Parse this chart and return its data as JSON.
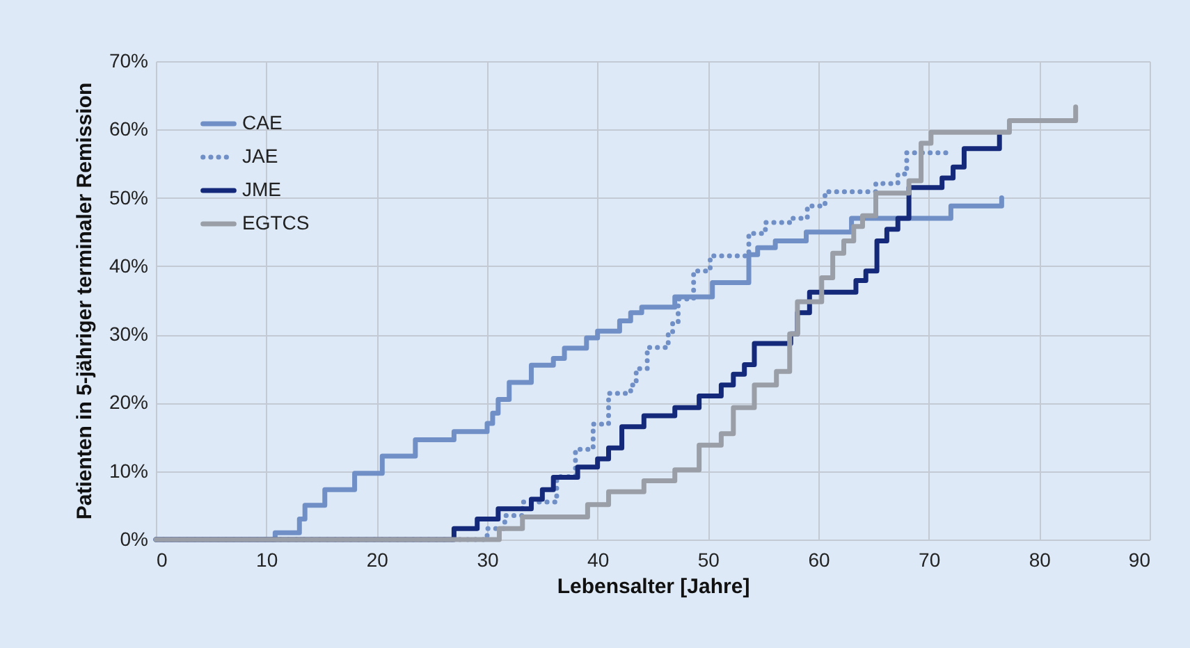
{
  "chart_data": {
    "type": "step",
    "xlabel": "Lebensalter [Jahre]",
    "ylabel": "Patienten in 5-jähriger terminaler Remission",
    "xlim": [
      0,
      90
    ],
    "xticks": [
      0,
      10,
      20,
      30,
      40,
      50,
      60,
      70,
      80,
      90
    ],
    "ylim": [
      0,
      70
    ],
    "yticks": [
      {
        "value": 0,
        "label": "0%"
      },
      {
        "value": 10,
        "label": "10%"
      },
      {
        "value": 20,
        "label": "20%"
      },
      {
        "value": 30,
        "label": "30%"
      },
      {
        "value": 40,
        "label": "40%"
      },
      {
        "value": 50,
        "label": "50%"
      },
      {
        "value": 60,
        "label": "60%"
      },
      {
        "value": 70,
        "label": "70%"
      }
    ],
    "grid": true,
    "legend": "top left",
    "series": [
      {
        "name": "CAE",
        "color": "#6f8fc6",
        "line_style": "solid",
        "x": [
          0,
          10.8,
          13,
          13.5,
          15.3,
          18,
          20.5,
          23.5,
          27,
          30,
          30.5,
          31,
          32,
          34,
          36,
          37,
          39,
          40,
          42,
          43,
          44,
          47,
          50.4,
          53.7,
          54.5,
          56.1,
          58.9,
          63,
          72,
          76.6
        ],
        "values": [
          0,
          1,
          3,
          5,
          7.3,
          9.7,
          12.2,
          14.6,
          15.8,
          17,
          18.5,
          20.5,
          23,
          25.5,
          26.5,
          28,
          29.5,
          30.5,
          32,
          33.2,
          34,
          35.5,
          37.6,
          41.7,
          42.7,
          43.7,
          45,
          47,
          48.8,
          50
        ]
      },
      {
        "name": "JAE",
        "color": "#6f8fc6",
        "line_style": "dotted",
        "x": [
          0,
          30,
          31.6,
          33.2,
          36.3,
          38,
          39.6,
          41,
          43,
          43.5,
          44.5,
          46.4,
          46.8,
          47.3,
          48.7,
          50.2,
          53.7,
          55.2,
          57.5,
          59,
          60.6,
          65.2,
          67.2,
          68,
          72.2
        ],
        "values": [
          0,
          1.6,
          3.5,
          5.5,
          9.2,
          13.2,
          16.9,
          21.4,
          22.6,
          25,
          28.1,
          30.1,
          31.8,
          35.2,
          39.3,
          41.5,
          44.8,
          46.4,
          47,
          48.8,
          50.9,
          52.1,
          53.5,
          56.6,
          56.6
        ]
      },
      {
        "name": "JME",
        "color": "#14297a",
        "line_style": "solid",
        "x": [
          0,
          27,
          29.1,
          31,
          34,
          35,
          36,
          38.2,
          40,
          41,
          42.2,
          44.2,
          47,
          49.2,
          51.2,
          52.3,
          53.3,
          54.2,
          57.5,
          58.1,
          59.2,
          63.4,
          64.3,
          65.3,
          66.2,
          67.2,
          68.2,
          71.2,
          72.2,
          73.2,
          76.4
        ],
        "values": [
          0,
          1.6,
          3,
          4.5,
          5.9,
          7.3,
          9.1,
          10.6,
          11.8,
          13.4,
          16.5,
          18.1,
          19.3,
          21,
          22.6,
          24.2,
          25.6,
          28.7,
          30.1,
          33.2,
          36.2,
          37.9,
          39.3,
          43.7,
          45.4,
          47,
          51.5,
          52.9,
          54.5,
          57.2,
          59.2
        ]
      },
      {
        "name": "EGTCS",
        "color": "#9a9ea6",
        "line_style": "solid",
        "x": [
          0,
          31.1,
          33.2,
          39.1,
          41,
          44.2,
          47,
          49.2,
          51.2,
          52.3,
          54.2,
          56.2,
          57.4,
          58.1,
          60.3,
          61.3,
          62.3,
          63.2,
          64,
          65.2,
          68.2,
          69.3,
          70.2,
          77.3,
          83.3
        ],
        "values": [
          0,
          1.6,
          3.3,
          5.1,
          7,
          8.6,
          10.2,
          13.8,
          15.5,
          19.3,
          22.6,
          24.6,
          30.1,
          34.8,
          38.3,
          41.9,
          43.7,
          45.8,
          47.4,
          50.7,
          52.5,
          58,
          59.6,
          61.3,
          63.3
        ]
      }
    ]
  }
}
